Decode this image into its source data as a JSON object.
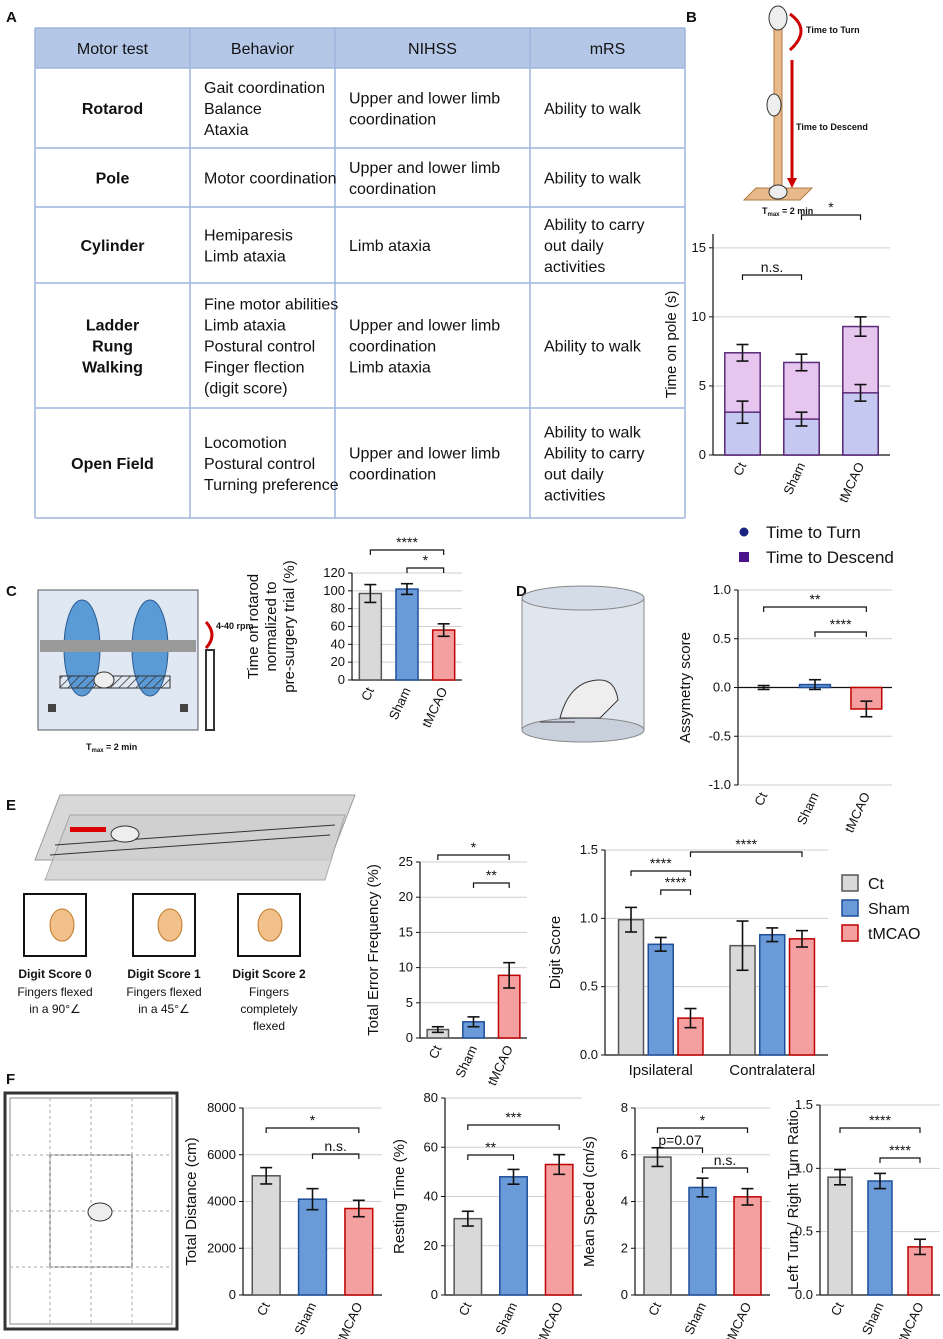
{
  "panel_labels": [
    "A",
    "B",
    "C",
    "D",
    "E",
    "F"
  ],
  "table": {
    "header": [
      "Motor test",
      "Behavior",
      "NIHSS",
      "mRS"
    ],
    "rows": [
      [
        [
          "Rotarod"
        ],
        [
          "Gait coordination",
          "Balance",
          "Ataxia"
        ],
        [
          "Upper and lower limb",
          "coordination"
        ],
        [
          "Ability to walk"
        ]
      ],
      [
        [
          "Pole"
        ],
        [
          "Motor coordination"
        ],
        [
          "Upper and lower limb",
          "coordination"
        ],
        [
          "Ability to walk"
        ]
      ],
      [
        [
          "Cylinder"
        ],
        [
          "Hemiparesis",
          "Limb ataxia"
        ],
        [
          "Limb ataxia"
        ],
        [
          "Ability to carry",
          "out daily",
          "activities"
        ]
      ],
      [
        [
          "Ladder",
          "Rung",
          "Walking"
        ],
        [
          "Fine motor abilities",
          "Limb ataxia",
          "Postural control",
          "Finger flection",
          "(digit score)"
        ],
        [
          "Upper and lower limb",
          "coordination",
          "Limb ataxia"
        ],
        [
          "Ability to walk"
        ]
      ],
      [
        [
          "Open Field"
        ],
        [
          "Locomotion",
          "Postural control",
          "Turning preference"
        ],
        [
          "Upper and lower limb",
          "coordination"
        ],
        [
          "Ability to walk",
          "Ability to carry",
          "out daily",
          "activities"
        ]
      ]
    ]
  },
  "illustrations": {
    "pole_turn": "Time to Turn",
    "pole_descend": "Time to Descend",
    "pole_tmax": [
      "T",
      "max",
      " = 2 min"
    ],
    "rotarod_speed": "4-40 rpm",
    "rotarod_tmax": [
      "T",
      "max",
      " = 2 min"
    ],
    "digit_scores": [
      {
        "title": "Digit Score 0",
        "caption": [
          "Fingers flexed",
          "in a 90°∠"
        ]
      },
      {
        "title": "Digit Score 1",
        "caption": [
          "Fingers flexed",
          "in a 45°∠"
        ]
      },
      {
        "title": "Digit Score 2",
        "caption": [
          "Fingers",
          "completely",
          "flexed"
        ]
      }
    ]
  },
  "chart_data": [
    {
      "type": "overlay_bar",
      "ylabel": [
        "Time on pole (s)"
      ],
      "categories": [
        "Ct",
        "Sham",
        "tMCAO"
      ],
      "series": [
        {
          "name": "Time to Descend",
          "color": "#e6c6ee",
          "marker_color": "#4a148c",
          "values": [
            7.4,
            6.7,
            9.3
          ],
          "errors": [
            0.6,
            0.6,
            0.7
          ]
        },
        {
          "name": "Time to Turn",
          "color": "#c5c8f0",
          "marker_color": "#1a237e",
          "values": [
            3.1,
            2.6,
            4.5
          ],
          "errors": [
            0.8,
            0.5,
            0.6
          ]
        }
      ],
      "ylim": [
        0,
        16
      ],
      "yticks": [
        0,
        5,
        10,
        15
      ],
      "grid": true,
      "annotations": [
        {
          "text": "*",
          "between": [
            "Sham",
            "tMCAO"
          ]
        },
        {
          "text": "n.s.",
          "between": [
            "Ct",
            "Sham"
          ]
        }
      ]
    },
    {
      "type": "bar",
      "ylabel": [
        "Time on rotarod",
        "normalized to",
        "pre-surgery trial (%)"
      ],
      "categories": [
        "Ct",
        "Sham",
        "tMCAO"
      ],
      "values": [
        97,
        102,
        56
      ],
      "errors": [
        10,
        6,
        7
      ],
      "colors": [
        "#d9d9d9",
        "#6a9bd8",
        "#f4a0a0"
      ],
      "strokes": [
        "#555555",
        "#1f4e9a",
        "#c00000"
      ],
      "ylim": [
        0,
        120
      ],
      "yticks": [
        0,
        20,
        40,
        60,
        80,
        100,
        120
      ],
      "grid": true,
      "annotations": [
        {
          "text": "****",
          "between": [
            "Ct",
            "tMCAO"
          ]
        },
        {
          "text": "*",
          "between": [
            "Sham",
            "tMCAO"
          ]
        }
      ]
    },
    {
      "type": "bar",
      "ylabel": [
        "Assymetry score"
      ],
      "categories": [
        "Ct",
        "Sham",
        "tMCAO"
      ],
      "values": [
        0.0,
        0.03,
        -0.22
      ],
      "errors": [
        0.02,
        0.05,
        0.08
      ],
      "colors": [
        "#d9d9d9",
        "#6a9bd8",
        "#f4a0a0"
      ],
      "strokes": [
        "#555555",
        "#1f4e9a",
        "#c00000"
      ],
      "ylim": [
        -1,
        1
      ],
      "yticks": [
        {
          "value": -1,
          "label": "-1.0"
        },
        {
          "value": -0.5,
          "label": "-0.5"
        },
        {
          "value": 0,
          "label": "0.0"
        },
        {
          "value": 0.5,
          "label": "0.5"
        },
        {
          "value": 1,
          "label": "1.0"
        }
      ],
      "grid": true,
      "annotations": [
        {
          "text": "**",
          "between": [
            "Ct",
            "tMCAO"
          ]
        },
        {
          "text": "****",
          "between": [
            "Sham",
            "tMCAO"
          ]
        }
      ]
    },
    {
      "type": "bar",
      "ylabel": [
        "Total Error Frequency (%)"
      ],
      "categories": [
        "Ct",
        "Sham",
        "tMCAO"
      ],
      "values": [
        1.2,
        2.3,
        8.9
      ],
      "errors": [
        0.4,
        0.7,
        1.8
      ],
      "colors": [
        "#d9d9d9",
        "#6a9bd8",
        "#f4a0a0"
      ],
      "strokes": [
        "#555555",
        "#1f4e9a",
        "#c00000"
      ],
      "ylim": [
        0,
        25
      ],
      "yticks": [
        0,
        5,
        10,
        15,
        20,
        25
      ],
      "grid": true,
      "annotations": [
        {
          "text": "*",
          "between": [
            "Ct",
            "tMCAO"
          ]
        },
        {
          "text": "**",
          "between": [
            "Sham",
            "tMCAO"
          ]
        }
      ]
    },
    {
      "type": "grouped_bar",
      "ylabel": [
        "Digit Score"
      ],
      "categories": [
        "Ipsilateral",
        "Contralateral"
      ],
      "series": [
        {
          "name": "Ct",
          "color": "#d9d9d9",
          "stroke": "#555555",
          "values": [
            0.99,
            0.8
          ],
          "errors": [
            0.09,
            0.18
          ]
        },
        {
          "name": "Sham",
          "color": "#6a9bd8",
          "stroke": "#1f4e9a",
          "values": [
            0.81,
            0.88
          ],
          "errors": [
            0.05,
            0.05
          ]
        },
        {
          "name": "tMCAO",
          "color": "#f4a0a0",
          "stroke": "#c00000",
          "values": [
            0.27,
            0.85
          ],
          "errors": [
            0.07,
            0.06
          ]
        }
      ],
      "ylim": [
        0,
        1.5
      ],
      "yticks": [
        {
          "value": 0,
          "label": "0.0"
        },
        {
          "value": 0.5,
          "label": "0.5"
        },
        {
          "value": 1,
          "label": "1.0"
        },
        {
          "value": 1.5,
          "label": "1.5"
        }
      ],
      "grid": true,
      "annotations": [
        {
          "text": "****",
          "between": [
            [
              "Ipsilateral",
              "tMCAO"
            ],
            [
              "Contralateral",
              "tMCAO"
            ]
          ]
        },
        {
          "text": "****",
          "between": [
            [
              "Ipsilateral",
              "Ct"
            ],
            [
              "Ipsilateral",
              "tMCAO"
            ]
          ]
        },
        {
          "text": "****",
          "between": [
            [
              "Ipsilateral",
              "Sham"
            ],
            [
              "Ipsilateral",
              "tMCAO"
            ]
          ]
        }
      ]
    },
    {
      "type": "bar",
      "ylabel": [
        "Total Distance (cm)"
      ],
      "categories": [
        "Ct",
        "Sham",
        "tMCAO"
      ],
      "values": [
        5100,
        4100,
        3700
      ],
      "errors": [
        350,
        450,
        350
      ],
      "colors": [
        "#d9d9d9",
        "#6a9bd8",
        "#f4a0a0"
      ],
      "strokes": [
        "#555555",
        "#1f4e9a",
        "#c00000"
      ],
      "ylim": [
        0,
        8000
      ],
      "yticks": [
        0,
        2000,
        4000,
        6000,
        8000
      ],
      "grid": true,
      "annotations": [
        {
          "text": "*",
          "between": [
            "Ct",
            "tMCAO"
          ]
        },
        {
          "text": "n.s.",
          "between": [
            "Sham",
            "tMCAO"
          ]
        }
      ]
    },
    {
      "type": "bar",
      "ylabel": [
        "Resting Time (%)"
      ],
      "categories": [
        "Ct",
        "Sham",
        "tMCAO"
      ],
      "values": [
        31,
        48,
        53
      ],
      "errors": [
        3,
        3,
        4
      ],
      "colors": [
        "#d9d9d9",
        "#6a9bd8",
        "#f4a0a0"
      ],
      "strokes": [
        "#555555",
        "#1f4e9a",
        "#c00000"
      ],
      "ylim": [
        0,
        80
      ],
      "yticks": [
        0,
        20,
        40,
        60,
        80
      ],
      "grid": true,
      "annotations": [
        {
          "text": "***",
          "between": [
            "Ct",
            "tMCAO"
          ]
        },
        {
          "text": "**",
          "between": [
            "Ct",
            "Sham"
          ]
        }
      ]
    },
    {
      "type": "bar",
      "ylabel": [
        "Mean Speed (cm/s)"
      ],
      "categories": [
        "Ct",
        "Sham",
        "tMCAO"
      ],
      "values": [
        5.9,
        4.6,
        4.2
      ],
      "errors": [
        0.4,
        0.4,
        0.35
      ],
      "colors": [
        "#d9d9d9",
        "#6a9bd8",
        "#f4a0a0"
      ],
      "strokes": [
        "#555555",
        "#1f4e9a",
        "#c00000"
      ],
      "ylim": [
        0,
        8
      ],
      "yticks": [
        0,
        2,
        4,
        6,
        8
      ],
      "grid": true,
      "annotations": [
        {
          "text": "*",
          "between": [
            "Ct",
            "tMCAO"
          ]
        },
        {
          "text": "p=0.07",
          "between": [
            "Ct",
            "Sham"
          ]
        },
        {
          "text": "n.s.",
          "between": [
            "Sham",
            "tMCAO"
          ]
        }
      ]
    },
    {
      "type": "bar",
      "ylabel": [
        "Left Turn / Right Turn Ratio"
      ],
      "categories": [
        "Ct",
        "Sham",
        "tMCAO"
      ],
      "values": [
        0.93,
        0.9,
        0.38
      ],
      "errors": [
        0.06,
        0.06,
        0.06
      ],
      "colors": [
        "#d9d9d9",
        "#6a9bd8",
        "#f4a0a0"
      ],
      "strokes": [
        "#555555",
        "#1f4e9a",
        "#c00000"
      ],
      "ylim": [
        0,
        1.5
      ],
      "yticks": [
        {
          "value": 0,
          "label": "0.0"
        },
        {
          "value": 0.5,
          "label": "0.5"
        },
        {
          "value": 1,
          "label": "1.0"
        },
        {
          "value": 1.5,
          "label": "1.5"
        }
      ],
      "grid": true,
      "annotations": [
        {
          "text": "****",
          "between": [
            "Ct",
            "tMCAO"
          ]
        },
        {
          "text": "****",
          "between": [
            "Sham",
            "tMCAO"
          ]
        }
      ]
    }
  ]
}
